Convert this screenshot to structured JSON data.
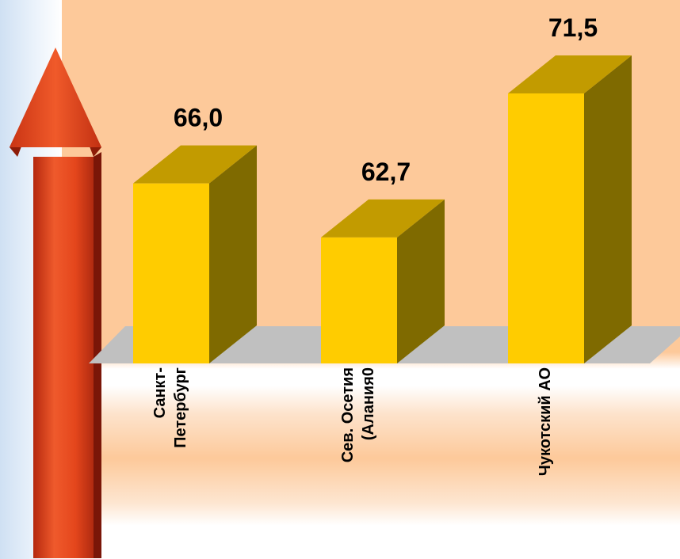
{
  "chart_data": {
    "type": "bar",
    "categories": [
      "Санкт-\nПетербург",
      "Сев. Осетия\n(Алания0",
      "Чукотский АО"
    ],
    "values": [
      66.0,
      62.7,
      71.5
    ],
    "value_labels": [
      "66,0",
      "62,7",
      "71,5"
    ],
    "title": "",
    "xlabel": "",
    "ylabel": "",
    "ylim": [
      55,
      75
    ],
    "grid": false,
    "legend": "none",
    "colors": {
      "bar_front": "#ffcc00",
      "bar_side": "#7f6a00",
      "bar_top": "#c29b00",
      "floor": "#c0c0c0",
      "arrow": "#e8481e"
    }
  }
}
